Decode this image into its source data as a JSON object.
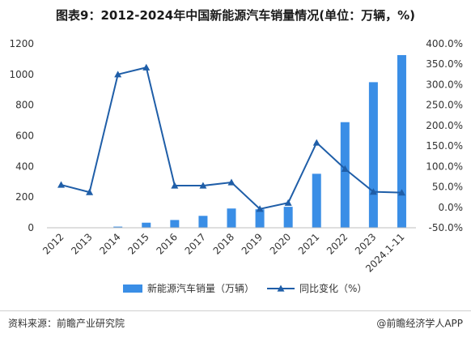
{
  "header": {
    "title": "图表9：2012-2024年中国新能源汽车销量情况(单位：万辆，%)"
  },
  "footer": {
    "source": "资料来源：前瞻产业研究院",
    "brand": "@前瞻经济学人APP"
  },
  "colors": {
    "bar": "#3a8ee6",
    "line": "#1f5ea8"
  },
  "chart_data": {
    "type": "bar",
    "categories": [
      "2012",
      "2013",
      "2014",
      "2015",
      "2016",
      "2017",
      "2018",
      "2019",
      "2020",
      "2021",
      "2022",
      "2023",
      "2024.1-11"
    ],
    "series": [
      {
        "name": "新能源汽车销量（万辆）",
        "type": "bar",
        "axis": "left",
        "values": [
          1.28,
          1.76,
          7.48,
          33.1,
          50.7,
          77.7,
          125.6,
          120.6,
          136.7,
          352.1,
          688.7,
          949.5,
          1126.2
        ]
      },
      {
        "name": "同比变化（%）",
        "type": "line",
        "axis": "right",
        "values": [
          55,
          37,
          325,
          342,
          53,
          53,
          61,
          -4,
          11,
          158,
          94,
          38,
          36
        ]
      }
    ],
    "y_left": {
      "min": 0,
      "max": 1200,
      "ticks": [
        "0",
        "200",
        "400",
        "600",
        "800",
        "1000",
        "1200"
      ],
      "tick_values": [
        0,
        200,
        400,
        600,
        800,
        1000,
        1200
      ]
    },
    "y_right": {
      "min": -50,
      "max": 400,
      "ticks": [
        "-50.0%",
        "0.0%",
        "50.0%",
        "100.0%",
        "150.0%",
        "200.0%",
        "250.0%",
        "300.0%",
        "350.0%",
        "400.0%"
      ],
      "tick_values": [
        -50,
        0,
        50,
        100,
        150,
        200,
        250,
        300,
        350,
        400
      ]
    },
    "legend_position": "bottom",
    "grid": false
  }
}
